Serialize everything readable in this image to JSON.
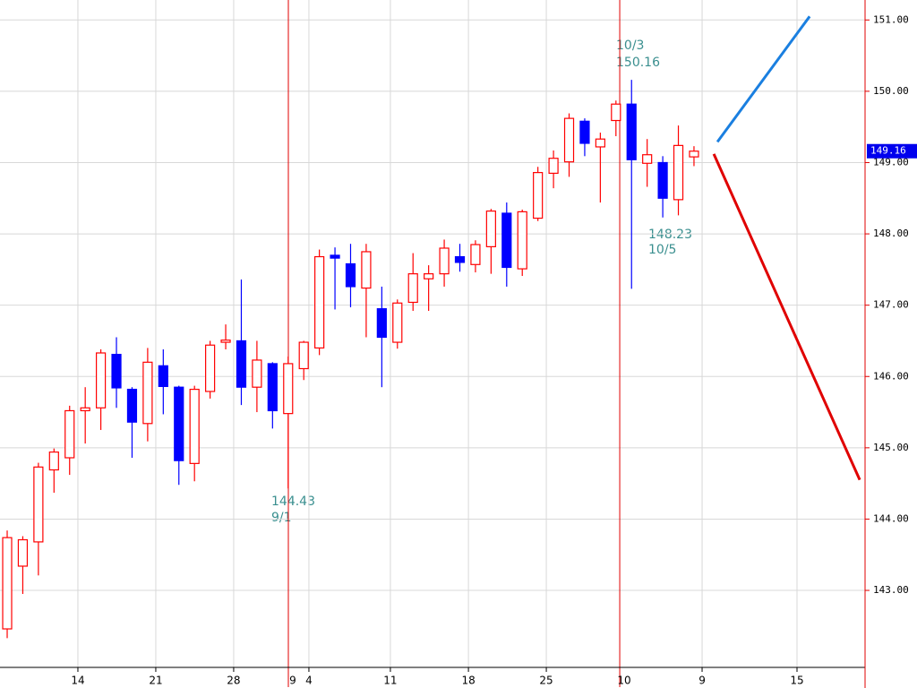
{
  "chart_data": {
    "type": "candlestick",
    "x": [
      0,
      1,
      2,
      3,
      4,
      5,
      6,
      7,
      8,
      9,
      10,
      11,
      12,
      13,
      14,
      15,
      16,
      17,
      18,
      19,
      20,
      21,
      22,
      23,
      24,
      25,
      26,
      27,
      28,
      29,
      30,
      31,
      32,
      33,
      34,
      35,
      36,
      37,
      38,
      39,
      40,
      41,
      42,
      43,
      44
    ],
    "open": [
      142.46,
      143.34,
      143.68,
      144.69,
      144.86,
      145.52,
      145.56,
      146.31,
      145.82,
      145.34,
      146.15,
      145.85,
      144.78,
      145.79,
      146.48,
      146.5,
      145.85,
      146.18,
      145.48,
      146.11,
      146.4,
      147.7,
      147.58,
      147.24,
      146.95,
      146.48,
      147.04,
      147.37,
      147.44,
      147.68,
      147.57,
      147.82,
      148.29,
      147.51,
      148.22,
      148.85,
      149.01,
      149.58,
      149.22,
      149.59,
      149.82,
      148.99,
      149.0,
      148.48,
      149.08
    ],
    "high": [
      143.84,
      143.76,
      144.79,
      144.99,
      145.59,
      145.85,
      146.38,
      146.55,
      145.85,
      146.4,
      146.38,
      145.87,
      145.87,
      146.5,
      146.73,
      147.36,
      146.5,
      146.2,
      146.28,
      146.5,
      147.78,
      147.81,
      147.86,
      147.86,
      147.26,
      147.08,
      147.73,
      147.56,
      147.92,
      147.86,
      147.91,
      148.35,
      148.44,
      148.34,
      148.94,
      149.17,
      149.69,
      149.62,
      149.42,
      149.87,
      150.16,
      149.33,
      149.09,
      149.52,
      149.23
    ],
    "low": [
      142.33,
      142.95,
      143.21,
      144.37,
      144.62,
      145.06,
      145.25,
      145.56,
      144.86,
      145.09,
      145.47,
      144.48,
      144.53,
      145.69,
      146.38,
      145.6,
      145.5,
      145.27,
      144.43,
      145.95,
      146.3,
      146.94,
      146.97,
      146.55,
      145.85,
      146.39,
      146.92,
      146.92,
      147.26,
      147.47,
      147.46,
      147.44,
      147.26,
      147.41,
      148.18,
      148.64,
      148.8,
      149.09,
      148.44,
      149.37,
      147.23,
      148.66,
      148.23,
      148.26,
      148.95
    ],
    "close": [
      143.74,
      143.71,
      144.73,
      144.94,
      145.52,
      145.56,
      146.33,
      145.84,
      145.36,
      146.2,
      145.86,
      144.82,
      145.82,
      146.44,
      146.51,
      145.85,
      146.23,
      145.52,
      146.18,
      146.48,
      147.68,
      147.66,
      147.26,
      147.75,
      146.55,
      147.03,
      147.44,
      147.44,
      147.8,
      147.6,
      147.85,
      148.32,
      147.53,
      148.31,
      148.86,
      149.06,
      149.62,
      149.27,
      149.33,
      149.82,
      149.04,
      149.11,
      148.5,
      149.24,
      149.16
    ],
    "up_color": "#ff0000",
    "down_color": "#0000ff",
    "xlim": [
      -0.46,
      54.96
    ],
    "xticks": [
      {
        "value": 4.53,
        "label": "14"
      },
      {
        "value": 9.52,
        "label": "21"
      },
      {
        "value": 14.51,
        "label": "28"
      },
      {
        "value": 19.33,
        "label": "4"
      },
      {
        "value": 24.55,
        "label": "11"
      },
      {
        "value": 29.55,
        "label": "18"
      },
      {
        "value": 34.54,
        "label": "25"
      },
      {
        "value": 44.52,
        "label": "9"
      },
      {
        "value": 50.6,
        "label": "15"
      }
    ],
    "month_ticks": [
      {
        "value": 18.3,
        "label": "9"
      },
      {
        "value": 39.53,
        "label": "10"
      }
    ],
    "ylim": [
      141.92,
      151.28
    ],
    "yticks": [
      {
        "value": 143,
        "label": "143.00"
      },
      {
        "value": 144,
        "label": "144.00"
      },
      {
        "value": 145,
        "label": "145.00"
      },
      {
        "value": 146,
        "label": "146.00"
      },
      {
        "value": 147,
        "label": "147.00"
      },
      {
        "value": 148,
        "label": "148.00"
      },
      {
        "value": 149,
        "label": "149.00"
      },
      {
        "value": 150,
        "label": "150.00"
      },
      {
        "value": 151,
        "label": "151.00"
      }
    ],
    "grid": true,
    "last_price": 149.16,
    "trend_lines": [
      {
        "color": "#1a7fe0",
        "x": [
          45.5,
          51.41
        ],
        "y": [
          149.29,
          151.05
        ]
      },
      {
        "color": "#e00000",
        "x": [
          45.27,
          54.62
        ],
        "y": [
          149.12,
          144.55
        ]
      }
    ],
    "annotations": [
      {
        "date": "10/3",
        "price": 150.16
      },
      {
        "date": "10/5",
        "price": 148.23
      },
      {
        "date": "9/1",
        "price": 144.43
      }
    ]
  }
}
